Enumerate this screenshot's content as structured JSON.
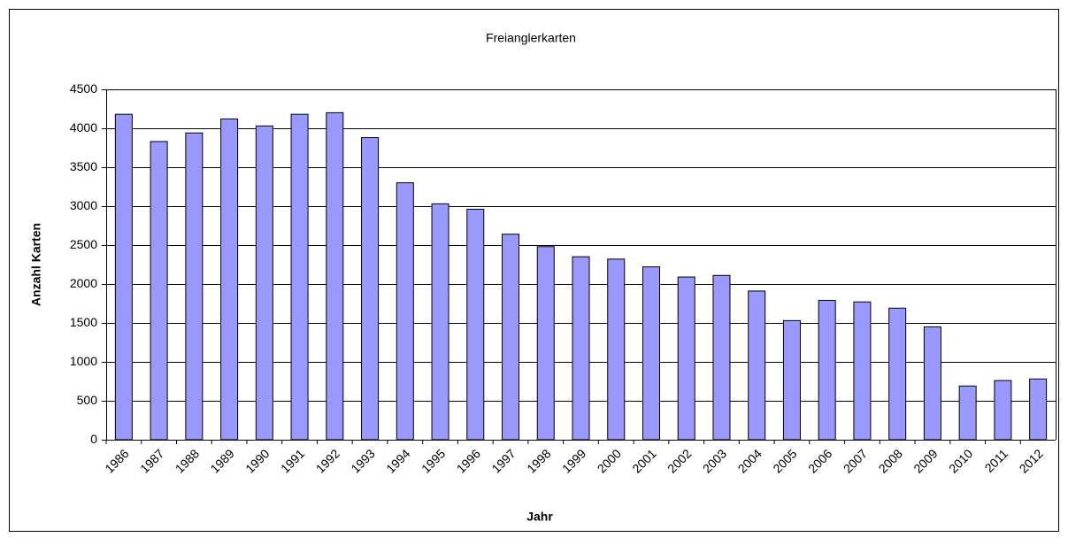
{
  "chart_data": {
    "type": "bar",
    "title": "Freianglerkarten",
    "x_label": "Jahr",
    "y_label": "Anzahl Karten",
    "categories": [
      "1986",
      "1987",
      "1988",
      "1989",
      "1990",
      "1991",
      "1992",
      "1993",
      "1994",
      "1995",
      "1996",
      "1997",
      "1998",
      "1999",
      "2000",
      "2001",
      "2002",
      "2003",
      "2004",
      "2005",
      "2006",
      "2007",
      "2008",
      "2009",
      "2010",
      "2011",
      "2012"
    ],
    "values": [
      4180,
      3830,
      3940,
      4120,
      4030,
      4180,
      4200,
      3880,
      3300,
      3030,
      2960,
      2640,
      2480,
      2350,
      2320,
      2220,
      2090,
      2110,
      1910,
      1530,
      1790,
      1770,
      1690,
      1450,
      690,
      760,
      780
    ],
    "color": "#9999ff",
    "ylim": [
      0,
      4500
    ],
    "yticks": [
      0,
      500,
      1000,
      1500,
      2000,
      2500,
      3000,
      3500,
      4000,
      4500
    ],
    "grid": true
  }
}
